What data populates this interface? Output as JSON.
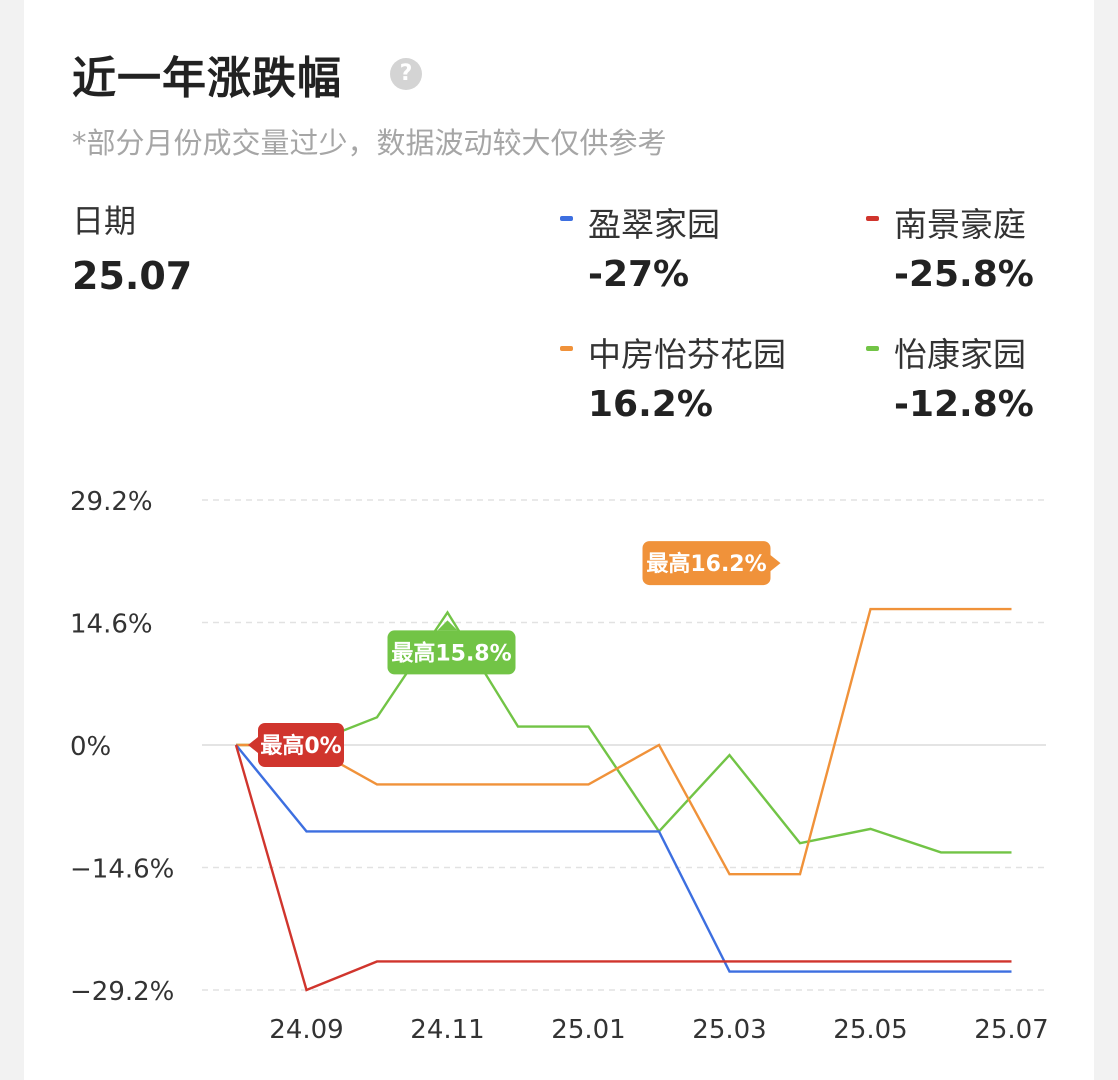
{
  "header": {
    "title": "近一年涨跌幅",
    "help_icon": "question-circle-icon",
    "subtitle": "*部分月份成交量过少，数据波动较大仅供参考"
  },
  "date": {
    "label": "日期",
    "value": "25.07"
  },
  "legend": [
    {
      "name": "盈翠家园",
      "value": "-27%",
      "color": "#3d6fe0"
    },
    {
      "name": "南景豪庭",
      "value": "-25.8%",
      "color": "#d0352d"
    },
    {
      "name": "中房怡芬花园",
      "value": "16.2%",
      "color": "#f0923a"
    },
    {
      "name": "怡康家园",
      "value": "-12.8%",
      "color": "#72c446"
    }
  ],
  "chart_data": {
    "type": "line",
    "x": [
      "24.08",
      "24.09",
      "24.10",
      "24.11",
      "24.12",
      "25.01",
      "25.02",
      "25.03",
      "25.04",
      "25.05",
      "25.06",
      "25.07"
    ],
    "x_tick_labels": [
      "24.09",
      "24.11",
      "25.01",
      "25.03",
      "25.05",
      "25.07"
    ],
    "y_tick_labels": [
      "29.2%",
      "14.6%",
      "0%",
      "−14.6%",
      "−29.2%"
    ],
    "y_ticks": [
      29.2,
      14.6,
      0,
      -14.6,
      -29.2
    ],
    "ylim": [
      -29.2,
      29.2
    ],
    "grid": true,
    "series": [
      {
        "name": "盈翠家园",
        "color": "#3d6fe0",
        "values": [
          0,
          -10.3,
          -10.3,
          -10.3,
          -10.3,
          -10.3,
          -10.3,
          -27,
          -27,
          -27,
          -27,
          -27
        ]
      },
      {
        "name": "南景豪庭",
        "color": "#d0352d",
        "values": [
          0,
          -29.2,
          -25.8,
          -25.8,
          -25.8,
          -25.8,
          -25.8,
          -25.8,
          -25.8,
          -25.8,
          -25.8,
          -25.8
        ]
      },
      {
        "name": "中房怡芬花园",
        "color": "#f0923a",
        "values": [
          0,
          0,
          -4.7,
          -4.7,
          -4.7,
          -4.7,
          0,
          -15.4,
          -15.4,
          16.2,
          16.2,
          16.2
        ]
      },
      {
        "name": "怡康家园",
        "color": "#72c446",
        "values": [
          0,
          0,
          3.3,
          15.8,
          2.2,
          2.2,
          -10.3,
          -1.2,
          -11.7,
          -10,
          -12.8,
          -12.8
        ]
      }
    ],
    "annotations": [
      {
        "series": "南景豪庭",
        "text": "最高0%",
        "x": "24.08",
        "y": 0
      },
      {
        "series": "怡康家园",
        "text": "最高15.8%",
        "x": "24.11",
        "y": 15.8
      },
      {
        "series": "中房怡芬花园",
        "text": "最高16.2%",
        "x": "25.05",
        "y": 16.2
      }
    ]
  }
}
